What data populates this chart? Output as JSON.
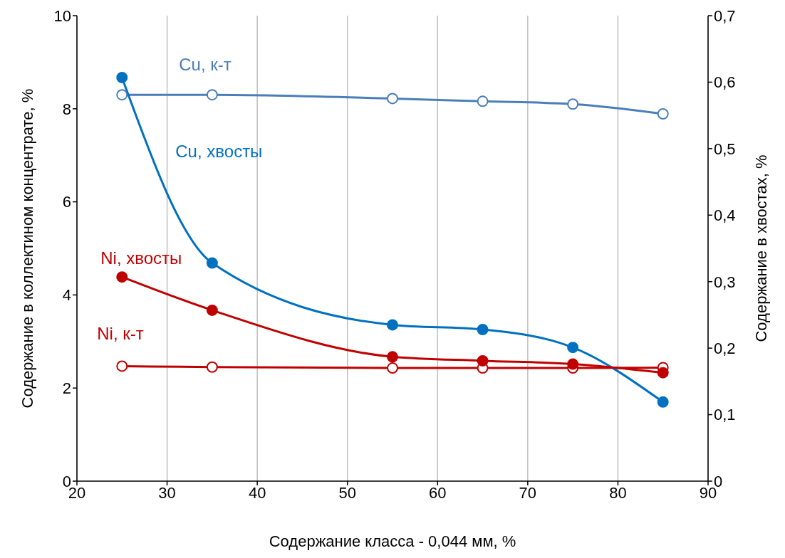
{
  "chart_data": {
    "type": "line",
    "xlabel": "Содержание класса - 0,044 мм, %",
    "ylabel": "Содержание в коллектином концентрате, %",
    "y2label": "Содержание в хвостах, %",
    "x": [
      25,
      35,
      55,
      65,
      75,
      85
    ],
    "series": [
      {
        "name": "Cu, к-т",
        "color": "#4a7ebb",
        "values": [
          8.3,
          8.3,
          8.22,
          8.16,
          8.1,
          7.89
        ]
      },
      {
        "name": "Cu, хвосты",
        "color": "#0070c0",
        "axis": "y2",
        "values": [
          0.607,
          0.328,
          0.235,
          0.228,
          0.201,
          0.119
        ]
      },
      {
        "name": "Ni, хвосты",
        "color": "#c00000",
        "axis": "y2",
        "values": [
          0.307,
          0.257,
          0.187,
          0.181,
          0.176,
          0.163
        ]
      },
      {
        "name": "Ni, к-т",
        "color": "#c00000",
        "values": [
          2.47,
          2.45,
          2.43,
          2.43,
          2.43,
          2.44
        ]
      }
    ],
    "xlim": [
      20,
      90
    ],
    "xticks": [
      20,
      30,
      40,
      50,
      60,
      70,
      80,
      90
    ],
    "ylim": [
      0,
      10
    ],
    "yticks": [
      0,
      2,
      4,
      6,
      8,
      10
    ],
    "y2lim": [
      0,
      0.7
    ],
    "y2ticks": [
      0,
      {
        "value": 0.1,
        "label": "0,1"
      },
      {
        "value": 0.2,
        "label": "0,2"
      },
      {
        "value": 0.3,
        "label": "0,3"
      },
      {
        "value": 0.4,
        "label": "0,4"
      },
      {
        "value": 0.5,
        "label": "0,5"
      },
      {
        "value": 0.6,
        "label": "0,6"
      },
      {
        "value": 0.7,
        "label": "0,7"
      }
    ],
    "grid": true,
    "marker": "circle"
  }
}
